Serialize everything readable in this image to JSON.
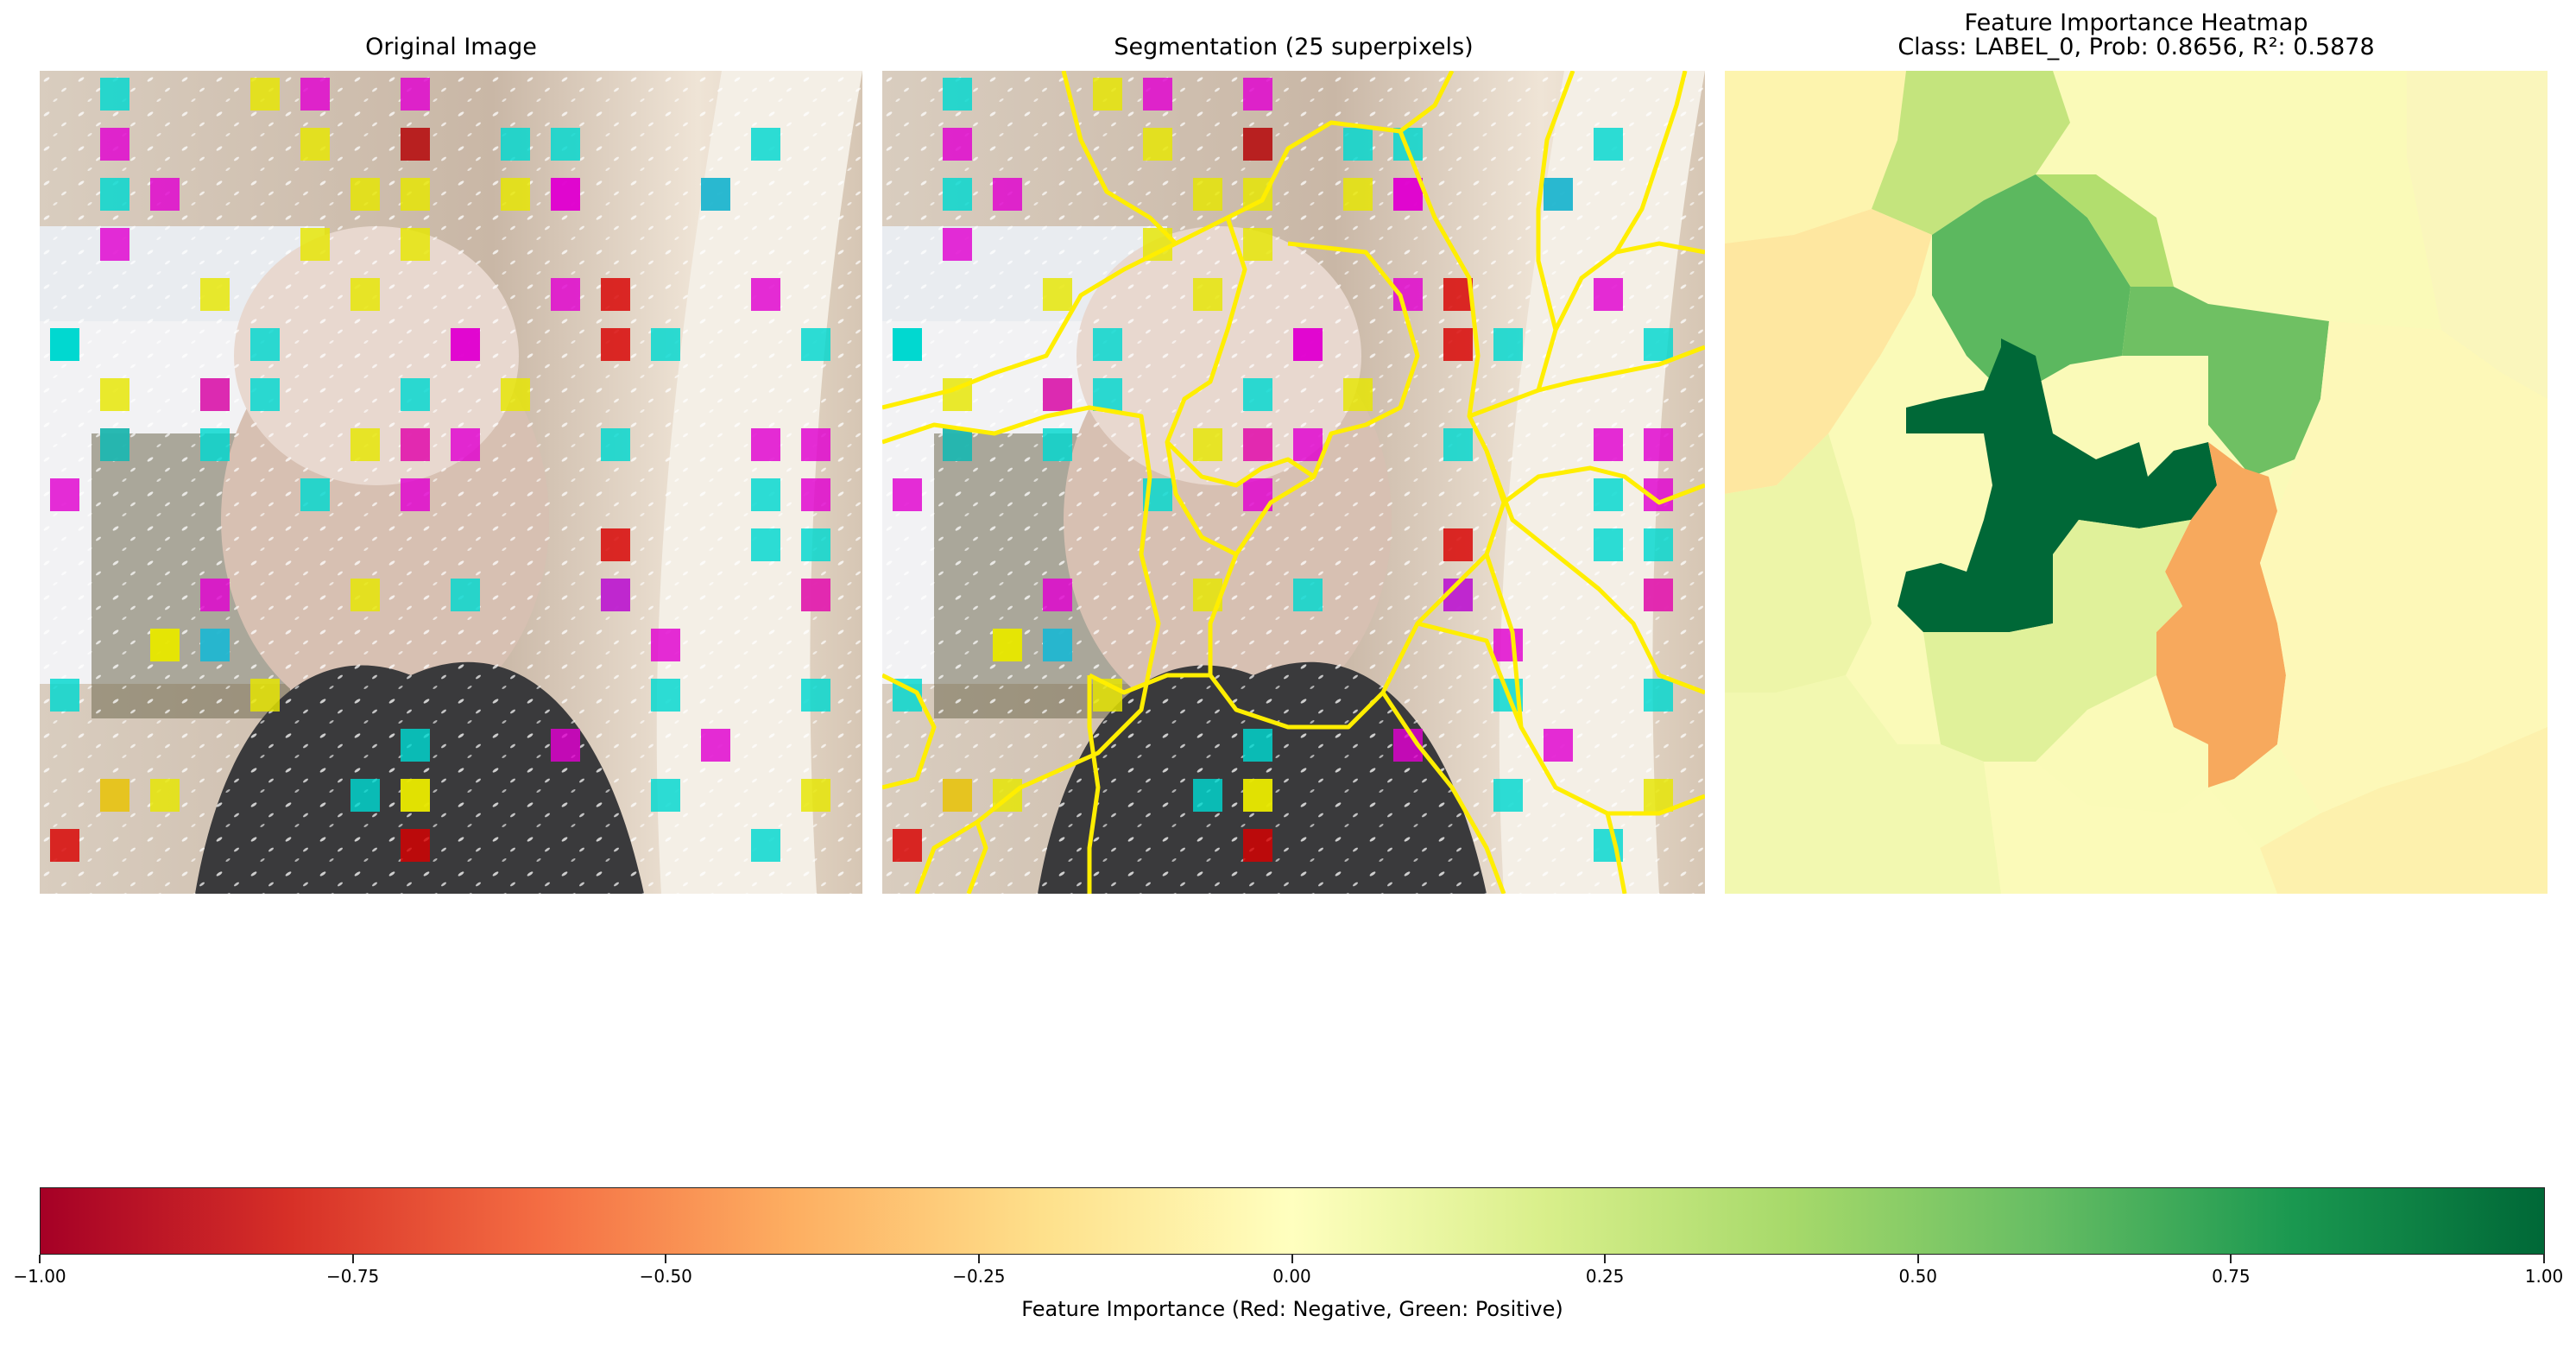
{
  "panels": {
    "original": {
      "title": "Original Image"
    },
    "segmentation": {
      "title": "Segmentation (25 superpixels)"
    },
    "heatmap": {
      "title_line1": "Feature Importance Heatmap",
      "title_line2": "Class: LABEL_0, Prob: 0.8656, R²: 0.5878"
    }
  },
  "colorbar": {
    "label": "Feature Importance (Red: Negative, Green: Positive)",
    "ticks": [
      "−1.00",
      "−0.75",
      "−0.50",
      "−0.25",
      "0.00",
      "0.25",
      "0.50",
      "0.75",
      "1.00"
    ],
    "range": [
      -1.0,
      1.0
    ],
    "colormap": [
      "#a50026",
      "#d73027",
      "#f46d43",
      "#fdae61",
      "#fee08b",
      "#ffffbf",
      "#d9ef8b",
      "#a6d96a",
      "#66bd63",
      "#1a9850",
      "#006837"
    ]
  }
}
